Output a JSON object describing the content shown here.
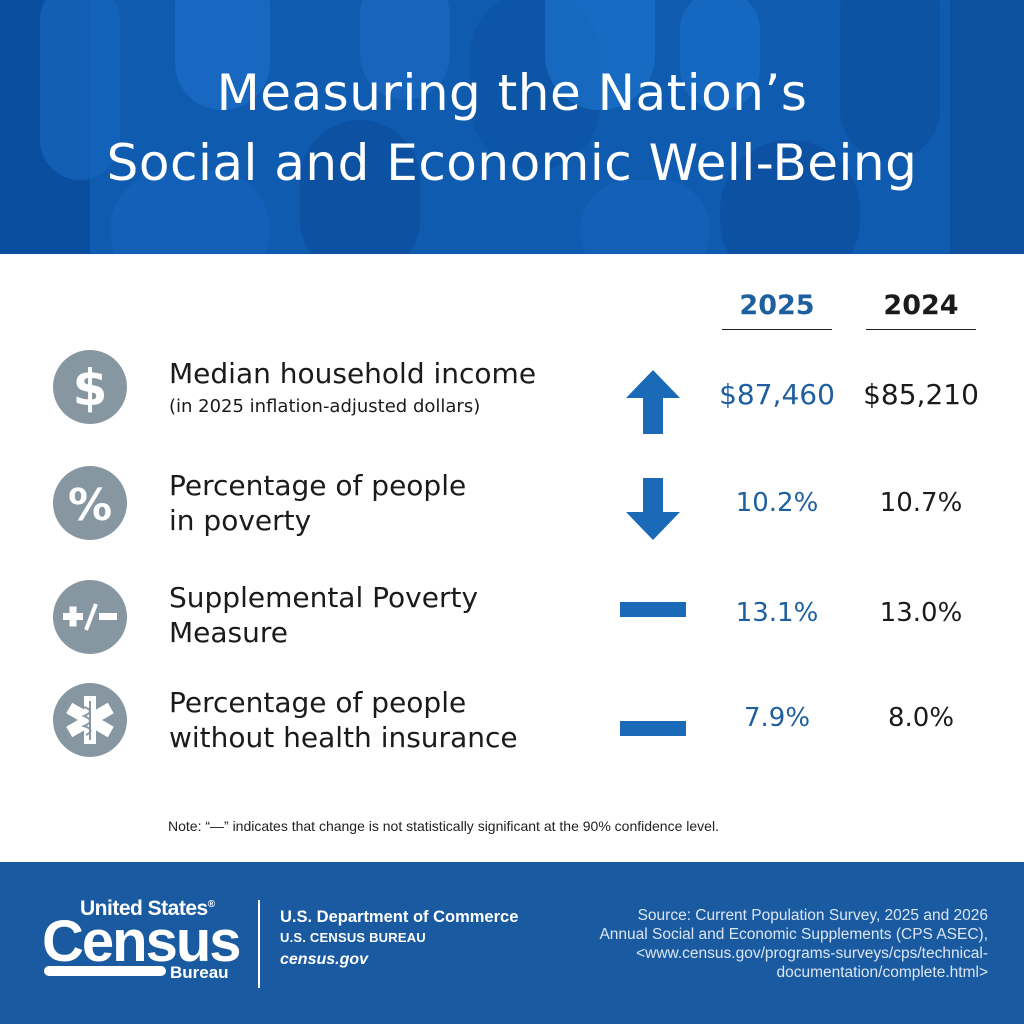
{
  "header": {
    "title_line1": "Measuring the Nation’s",
    "title_line2": "Social and Economic Well-Being"
  },
  "columns": {
    "current_year": "2025",
    "prior_year": "2024"
  },
  "rows": [
    {
      "icon": "dollar-icon",
      "label_line1": "Median household income",
      "label_line2": "",
      "sub": "(in 2025 inflation-adjusted dollars)",
      "trend": "up",
      "value_2025": "$87,460",
      "value_2024": "$85,210"
    },
    {
      "icon": "percent-icon",
      "label_line1": "Percentage of people",
      "label_line2": "in poverty",
      "sub": "",
      "trend": "down",
      "value_2025": "10.2%",
      "value_2024": "10.7%"
    },
    {
      "icon": "plus-minus-icon",
      "label_line1": "Supplemental Poverty",
      "label_line2": "Measure",
      "sub": "",
      "trend": "no-change",
      "value_2025": "13.1%",
      "value_2024": "13.0%"
    },
    {
      "icon": "medical-star-icon",
      "label_line1": "Percentage of people",
      "label_line2": "without health insurance",
      "sub": "",
      "trend": "no-change",
      "value_2025": "7.9%",
      "value_2024": "8.0%"
    }
  ],
  "note": "Note: “—” indicates that change is not statistically significant at the 90% confidence level.",
  "footer": {
    "logo_top": "United States",
    "logo_registered": "®",
    "logo_main": "Census",
    "logo_sub": "Bureau",
    "dept": "U.S. Department of Commerce",
    "bureau": "U.S. CENSUS BUREAU",
    "site": "census.gov",
    "source_line1": "Source: Current Population Survey, 2025 and 2026",
    "source_line2": "Annual Social and Economic Supplements (CPS ASEC),",
    "source_line3": "<www.census.gov/programs-surveys/cps/technical-",
    "source_line4": "documentation/complete.html>"
  },
  "colors": {
    "header_blue": "#0f5bb0",
    "accent_blue": "#1f5f9f",
    "icon_gray": "#8797a1",
    "footer_blue": "#1a5aa1"
  }
}
